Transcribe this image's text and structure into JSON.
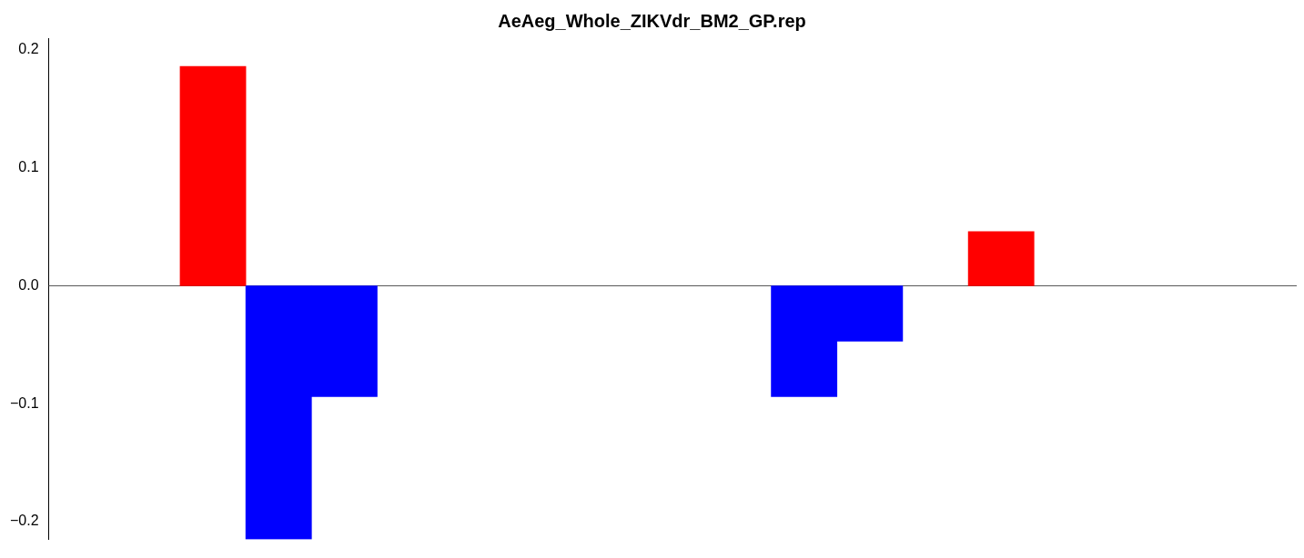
{
  "chart_data": {
    "type": "bar",
    "title": "AeAeg_Whole_ZIKVdr_BM2_GP.rep",
    "categories": [
      null,
      null,
      null,
      null,
      null,
      null,
      null,
      null,
      null,
      null,
      null,
      null,
      null,
      null,
      null,
      null,
      null,
      null,
      null
    ],
    "values": [
      null,
      null,
      0.186,
      -0.215,
      -0.094,
      null,
      null,
      null,
      null,
      null,
      null,
      -0.094,
      -0.047,
      null,
      0.046,
      null,
      null,
      null,
      null
    ],
    "colors": [
      "#ff0000",
      "#ff0000",
      "#ff0000",
      "#0000ff",
      "#0000ff",
      "#0000ff",
      "#0000ff",
      "#0000ff",
      "#0000ff",
      "#0000ff",
      "#0000ff",
      "#0000ff",
      "#0000ff",
      "#ff0000",
      "#ff0000",
      "#ff0000",
      "#ff0000",
      "#ff0000",
      "#ff0000"
    ],
    "ylim": [
      -0.215,
      0.21
    ],
    "yticks": [
      {
        "value": -0.2,
        "label": "−0.2"
      },
      {
        "value": -0.1,
        "label": "−0.1"
      },
      {
        "value": 0,
        "label": "0.0"
      },
      {
        "value": 0.1,
        "label": "0.1"
      },
      {
        "value": 0.2,
        "label": "0.2"
      }
    ],
    "ref_lines": [
      {
        "axis": "y",
        "value": 0,
        "color": "#555555"
      }
    ],
    "grid": false,
    "legend": false,
    "tick_labels": "y"
  }
}
